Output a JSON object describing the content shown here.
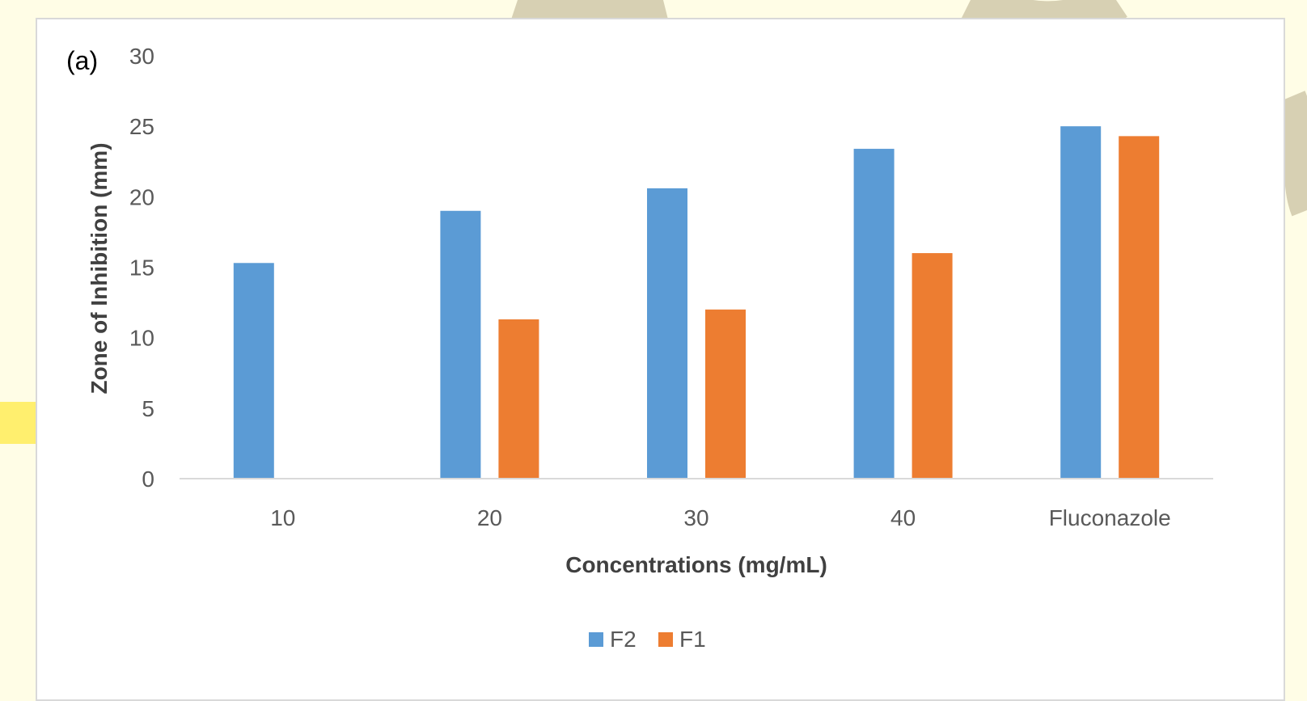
{
  "chart_data": {
    "type": "bar",
    "panel_label": "(a)",
    "title": "",
    "xlabel": "Concentrations (mg/mL)",
    "ylabel": "Zone of Inhibition (mm)",
    "categories": [
      "10",
      "20",
      "30",
      "40",
      "Fluconazole"
    ],
    "series": [
      {
        "name": "F2",
        "color": "#5b9bd5",
        "values": [
          15.3,
          19.0,
          20.6,
          23.4,
          25.0
        ]
      },
      {
        "name": "F1",
        "color": "#ed7d31",
        "values": [
          0,
          11.3,
          12.0,
          16.0,
          24.3
        ]
      }
    ],
    "ylim": [
      0,
      30
    ],
    "yticks": [
      "0",
      "5",
      "10",
      "15",
      "20",
      "25",
      "30"
    ],
    "grid": false,
    "legend_position": "bottom"
  }
}
